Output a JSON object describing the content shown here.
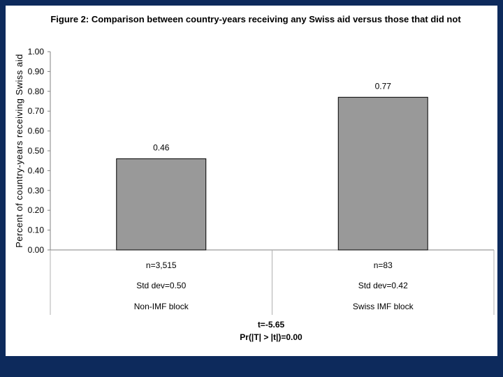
{
  "chart_data": {
    "type": "bar",
    "title": "Figure 2: Comparison between country-years receiving any Swiss aid versus those that did not",
    "ylabel": "Percent of country-years receiving Swiss aid",
    "xlabel": "",
    "ylim": [
      0,
      1.0
    ],
    "yticks": [
      "0.00",
      "0.10",
      "0.20",
      "0.30",
      "0.40",
      "0.50",
      "0.60",
      "0.70",
      "0.80",
      "0.90",
      "1.00"
    ],
    "categories": [
      "Non-IMF block",
      "Swiss IMF block"
    ],
    "values": [
      0.46,
      0.77
    ],
    "value_labels": [
      "0.46",
      "0.77"
    ],
    "table_rows": [
      [
        "n=3,515",
        "n=83"
      ],
      [
        "Std dev=0.50",
        "Std dev=0.42"
      ],
      [
        "Non-IMF block",
        "Swiss IMF block"
      ]
    ],
    "stats": {
      "t": "t=-5.65",
      "p": "Pr(|T| > |t|)=0.00"
    },
    "colors": {
      "bar": "#999999",
      "background": "#0d2a5c"
    }
  }
}
